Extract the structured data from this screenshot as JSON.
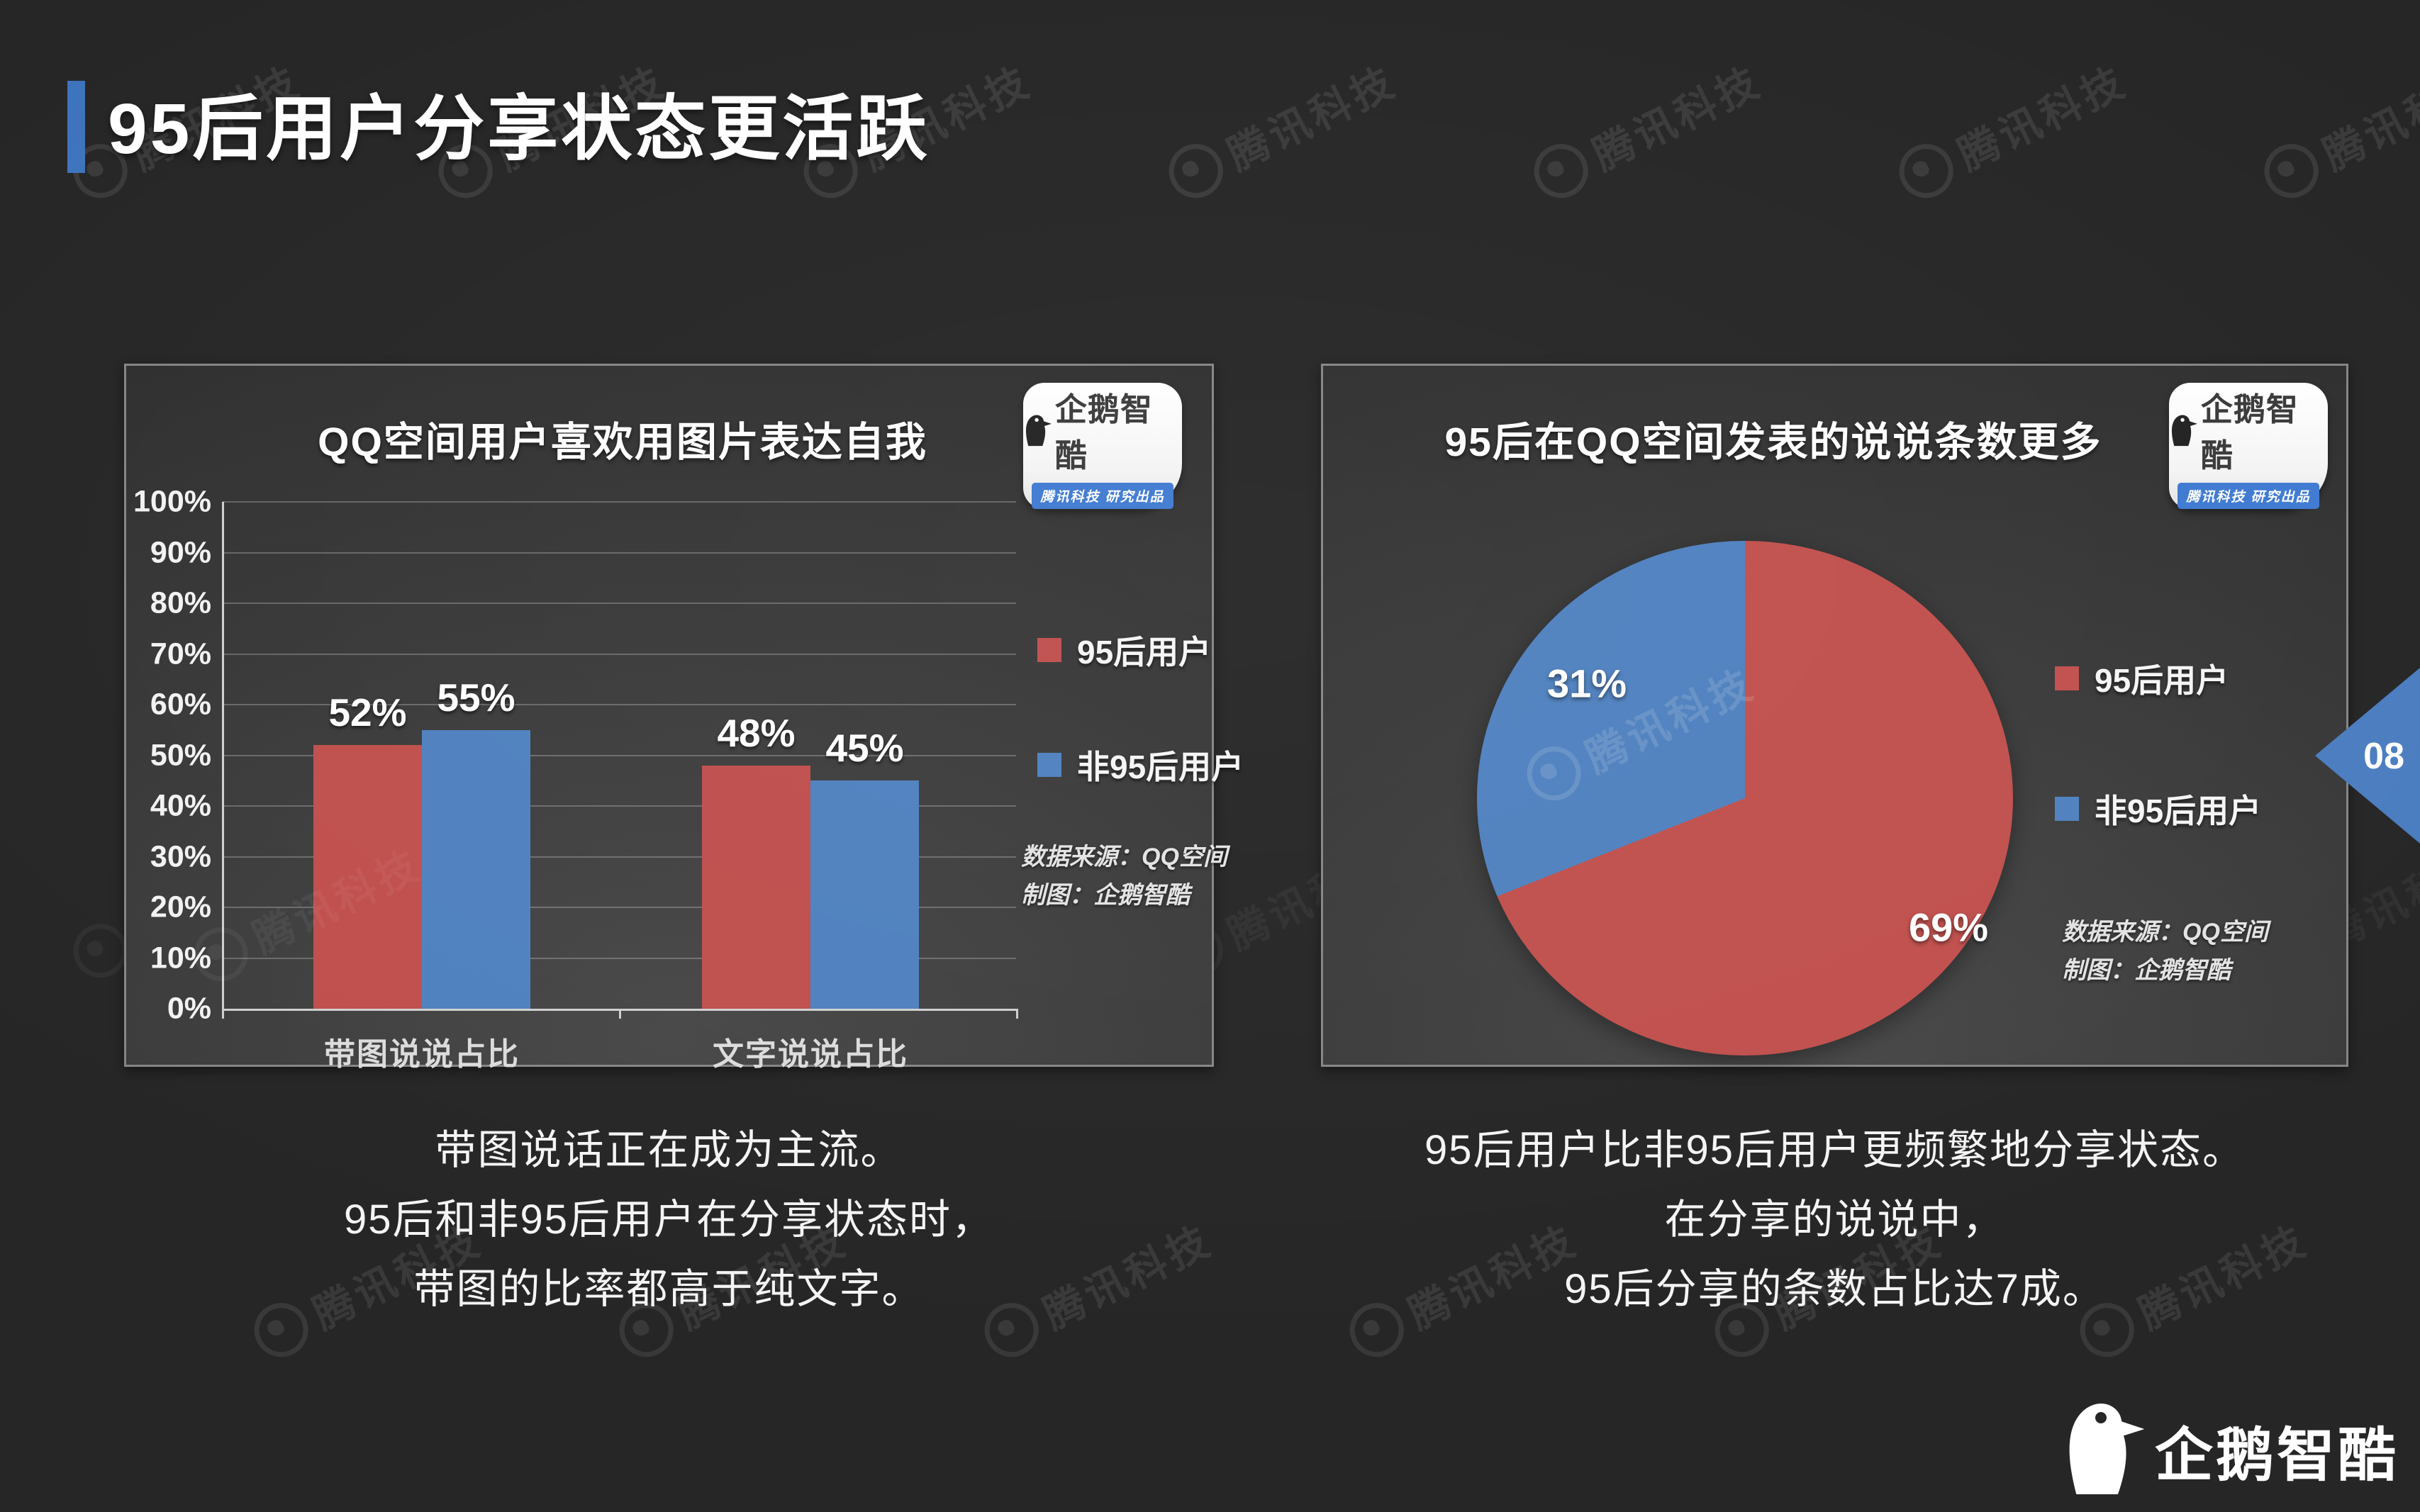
{
  "page": {
    "title": "95后用户分享状态更活跃",
    "page_number": "08",
    "accent_color": "#3e74bc",
    "ribbon_color": "#4a7dc0"
  },
  "watermark": {
    "text": "腾讯科技"
  },
  "badge": {
    "brand": "企鹅智酷",
    "banner": "腾讯科技 研究出品"
  },
  "footer_logo": {
    "text": "企鹅智酷"
  },
  "caption_left": {
    "lines": [
      "带图说话正在成为主流。",
      "95后和非95后用户在分享状态时，",
      "带图的比率都高于纯文字。"
    ]
  },
  "caption_right": {
    "lines": [
      "95后用户比非95后用户更频繁地分享状态。",
      "在分享的说说中，",
      "95后分享的条数占比达7成。"
    ]
  },
  "chart_data": [
    {
      "type": "bar",
      "title": "QQ空间用户喜欢用图片表达自我",
      "categories": [
        "带图说说占比",
        "文字说说占比"
      ],
      "series": [
        {
          "name": "95后用户",
          "color": "#bf4f4d",
          "values": [
            52,
            48
          ]
        },
        {
          "name": "非95后用户",
          "color": "#4f81bf",
          "values": [
            55,
            45
          ]
        }
      ],
      "ylabel": "",
      "xlabel": "",
      "ylim": [
        0,
        100
      ],
      "ytick_step": 10,
      "ytick_suffix": "%",
      "data_label_suffix": "%",
      "grid": true,
      "legend_position": "right",
      "source_line1": "数据来源：QQ空间",
      "source_line2": "制图：企鹅智酷"
    },
    {
      "type": "pie",
      "title": "95后在QQ空间发表的说说条数更多",
      "slices": [
        {
          "name": "95后用户",
          "value": 69,
          "pct_label": "69%",
          "color": "#c0504d"
        },
        {
          "name": "非95后用户",
          "value": 31,
          "pct_label": "31%",
          "color": "#4f81bf"
        }
      ],
      "start_angle_deg": 0,
      "direction": "clockwise",
      "legend_position": "right",
      "source_line1": "数据来源：QQ空间",
      "source_line2": "制图：企鹅智酷"
    }
  ]
}
